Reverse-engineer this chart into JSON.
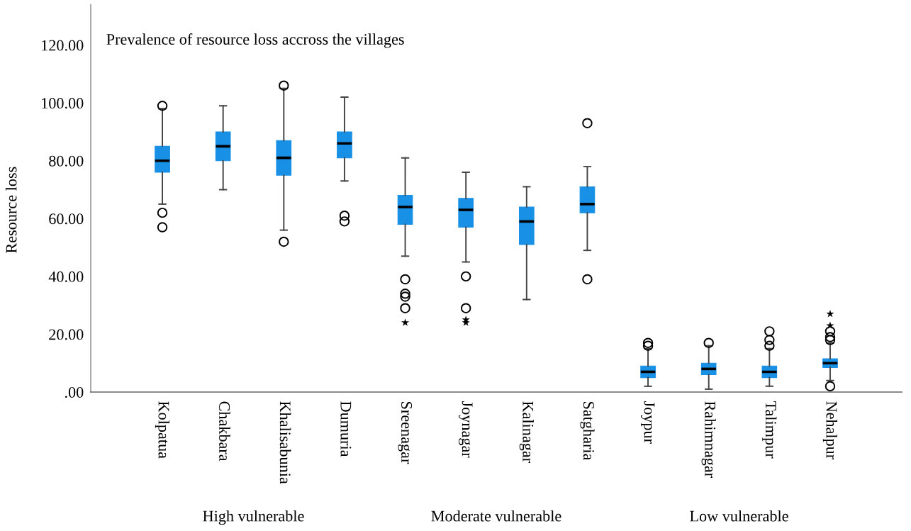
{
  "chart_data": {
    "type": "box",
    "title": "Prevalence of resource loss accross the villages",
    "ylabel": "Resource loss",
    "categories": [
      "Kolpatua",
      "Chakbara",
      "Khalisabunia",
      "Dumuria",
      "Sreenagar",
      "Joynagar",
      "Kalinagar",
      "Satgharia",
      "Joypur",
      "Rahimnagar",
      "Talimpur",
      "Nehalpur"
    ],
    "color": "#1890e6",
    "marker": "circle",
    "boxes": [
      {
        "low": 65,
        "q1": 76,
        "median": 80,
        "q3": 85,
        "high": 98,
        "outliers": [
          99,
          62,
          57
        ]
      },
      {
        "low": 70,
        "q1": 80,
        "median": 85,
        "q3": 90,
        "high": 99
      },
      {
        "low": 56,
        "q1": 75,
        "median": 81,
        "q3": 87,
        "high": 105,
        "outliers": [
          106,
          52
        ]
      },
      {
        "low": 73,
        "q1": 81,
        "median": 86,
        "q3": 90,
        "high": 102,
        "outliers": [
          61,
          59
        ]
      },
      {
        "low": 47,
        "q1": 58,
        "median": 64,
        "q3": 68,
        "high": 81,
        "outliers": [
          39,
          34,
          33,
          29
        ]
      },
      {
        "low": 45,
        "q1": 57,
        "median": 63,
        "q3": 67,
        "high": 76,
        "outliers": [
          40,
          29
        ]
      },
      {
        "low": 32,
        "q1": 51,
        "median": 59,
        "q3": 64,
        "high": 71
      },
      {
        "low": 49,
        "q1": 62,
        "median": 65,
        "q3": 71,
        "high": 78,
        "outliers": [
          93,
          39
        ]
      },
      {
        "low": 2,
        "q1": 5,
        "median": 7,
        "q3": 9,
        "high": 15,
        "outliers": [
          17,
          16
        ]
      },
      {
        "low": 1,
        "q1": 6,
        "median": 8,
        "q3": 10,
        "high": 16,
        "outliers": [
          17
        ]
      },
      {
        "low": 2,
        "q1": 5,
        "median": 7,
        "q3": 9,
        "high": 15,
        "outliers": [
          21,
          18,
          16
        ]
      },
      {
        "low": 4,
        "q1": 8.5,
        "median": 10,
        "q3": 11.5,
        "high": 17,
        "outliers": [
          21,
          19,
          18,
          2
        ]
      }
    ],
    "series": [
      {
        "type": "scatter",
        "marker": "star",
        "color": "#000000",
        "x": [
          "Sreenagar",
          "Joynagar",
          "Joynagar",
          "Nehalpur",
          "Nehalpur"
        ],
        "values": [
          24,
          25,
          24,
          27,
          23
        ]
      }
    ],
    "ylim": [
      0,
      134
    ],
    "yticks": [
      {
        "value": 0,
        "label": ".00"
      },
      {
        "value": 20,
        "label": "20.00"
      },
      {
        "value": 40,
        "label": "40.00"
      },
      {
        "value": 60,
        "label": "60.00"
      },
      {
        "value": 80,
        "label": "80.00"
      },
      {
        "value": 100,
        "label": "100.00"
      },
      {
        "value": 120,
        "label": "120.00"
      }
    ],
    "annotations": [
      "High vulnerable",
      "Moderate vulnerable",
      "Low vulnerable"
    ]
  }
}
